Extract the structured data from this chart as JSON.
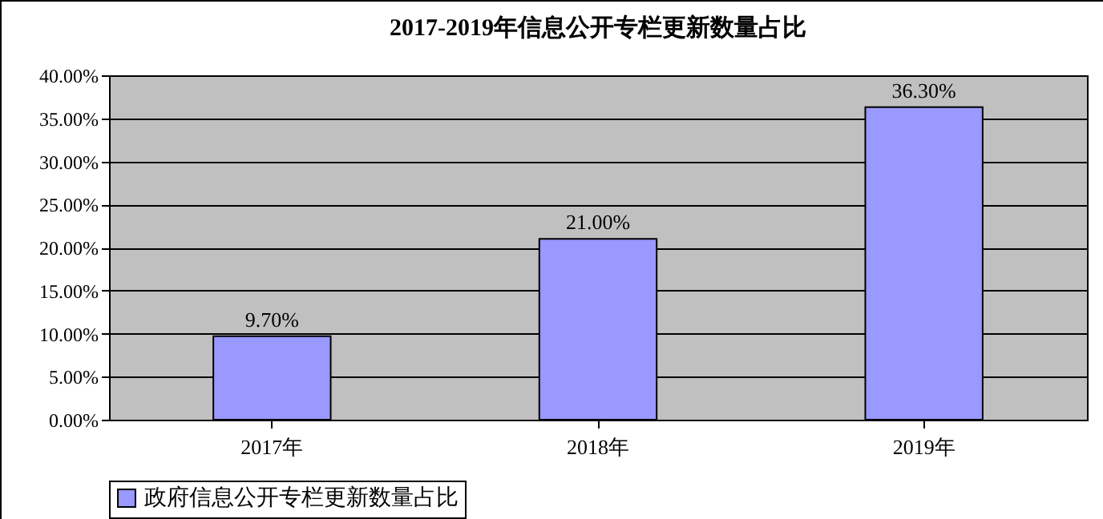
{
  "chart_data": {
    "type": "bar",
    "title": "2017-2019年信息公开专栏更新数量占比",
    "categories": [
      "2017年",
      "2018年",
      "2019年"
    ],
    "series": [
      {
        "name": "政府信息公开专栏更新数量占比",
        "color": "#9999ff",
        "values": [
          9.7,
          21.0,
          36.3
        ],
        "value_labels": [
          "9.70%",
          "21.00%",
          "36.30%"
        ]
      }
    ],
    "ylim": [
      0,
      40
    ],
    "yticks": [
      {
        "value": 0,
        "label": "0.00%"
      },
      {
        "value": 5,
        "label": "5.00%"
      },
      {
        "value": 10,
        "label": "10.00%"
      },
      {
        "value": 15,
        "label": "15.00%"
      },
      {
        "value": 20,
        "label": "20.00%"
      },
      {
        "value": 25,
        "label": "25.00%"
      },
      {
        "value": 30,
        "label": "30.00%"
      },
      {
        "value": 35,
        "label": "35.00%"
      },
      {
        "value": 40,
        "label": "40.00%"
      }
    ],
    "grid": "y",
    "legend": "bottom"
  }
}
